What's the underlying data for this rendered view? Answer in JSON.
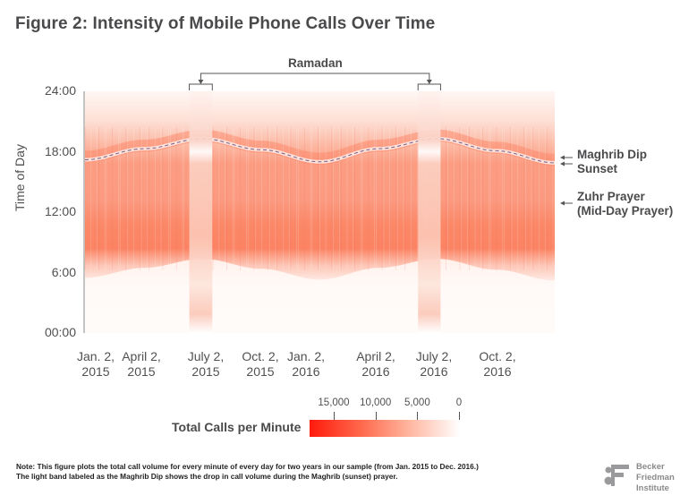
{
  "title": "Figure 2: Intensity of Mobile Phone Calls Over Time",
  "chart_data": {
    "type": "heatmap",
    "title": "Figure 2: Intensity of Mobile Phone Calls Over Time",
    "xlabel": "",
    "ylabel": "Time of Day",
    "x_range": [
      "2015-01-01",
      "2016-12-31"
    ],
    "y_range": [
      "00:00",
      "24:00"
    ],
    "x_ticks": [
      {
        "line1": "Jan. 2,",
        "line2": "2015",
        "frac": 0.0
      },
      {
        "line1": "April 2,",
        "line2": "2015",
        "frac": 0.123
      },
      {
        "line1": "July 2,",
        "line2": "2015",
        "frac": 0.248
      },
      {
        "line1": "Oct. 2,",
        "line2": "2015",
        "frac": 0.374
      },
      {
        "line1": "Jan. 2,",
        "line2": "2016",
        "frac": 0.5
      },
      {
        "line1": "April 2,",
        "line2": "2016",
        "frac": 0.625
      },
      {
        "line1": "July 2,",
        "line2": "2016",
        "frac": 0.749
      },
      {
        "line1": "Oct. 2,",
        "line2": "2016",
        "frac": 0.875
      }
    ],
    "y_ticks": [
      {
        "label": "24:00",
        "hour": 24
      },
      {
        "label": "18:00",
        "hour": 18
      },
      {
        "label": "12:00",
        "hour": 12
      },
      {
        "label": "6:00",
        "hour": 6
      },
      {
        "label": "00:00",
        "hour": 0
      }
    ],
    "maghrib_curve_hours": [
      {
        "date_frac": 0.0,
        "hour": 17.2
      },
      {
        "date_frac": 0.125,
        "hour": 18.3
      },
      {
        "date_frac": 0.25,
        "hour": 19.3
      },
      {
        "date_frac": 0.375,
        "hour": 18.2
      },
      {
        "date_frac": 0.5,
        "hour": 17.0
      },
      {
        "date_frac": 0.625,
        "hour": 18.3
      },
      {
        "date_frac": 0.75,
        "hour": 19.3
      },
      {
        "date_frac": 0.875,
        "hour": 18.1
      },
      {
        "date_frac": 1.0,
        "hour": 16.9
      }
    ],
    "ramadan_periods": [
      {
        "start_frac": 0.222,
        "end_frac": 0.271
      },
      {
        "start_frac": 0.709,
        "end_frac": 0.757
      }
    ],
    "intensity_profile": "High call volume roughly 08:00–21:00 (peak around 10:00–12:00), low overnight 00:00–07:00; dip along Maghrib (sunset) line; reduced daytime volume during Ramadan",
    "colorbar": {
      "title": "Total Calls per Minute",
      "ticks": [
        15000,
        10000,
        5000,
        0
      ],
      "tick_labels": [
        "15,000",
        "10,000",
        "5,000",
        "0"
      ],
      "max_color": "#ff1a0d",
      "min_color": "#ffffff"
    },
    "annotations": [
      {
        "text": "Ramadan",
        "type": "bracket"
      },
      {
        "line1": "Maghrib Dip",
        "line2": "Sunset",
        "hour": 17.2
      },
      {
        "line1": "Zuhr Prayer",
        "line2": "(Mid-Day Prayer)",
        "hour": 12.6
      }
    ]
  },
  "note": {
    "line1": "Note: This figure plots the total call volume for every minute of every day for two years in our sample (from Jan. 2015 to Dec. 2016.)",
    "line2": "The light band labeled as the Maghrib Dip shows the drop in call volume during the Maghrib (sunset) prayer."
  },
  "logo": {
    "mark": "BF",
    "line1": "Becker",
    "line2": "Friedman",
    "line3": "Institute"
  },
  "colors": {
    "heat_peak": "#fb8063",
    "heat_mid": "#fcb09a",
    "maghrib_line": "#7a5a8a",
    "text": "#4a4a4c"
  }
}
